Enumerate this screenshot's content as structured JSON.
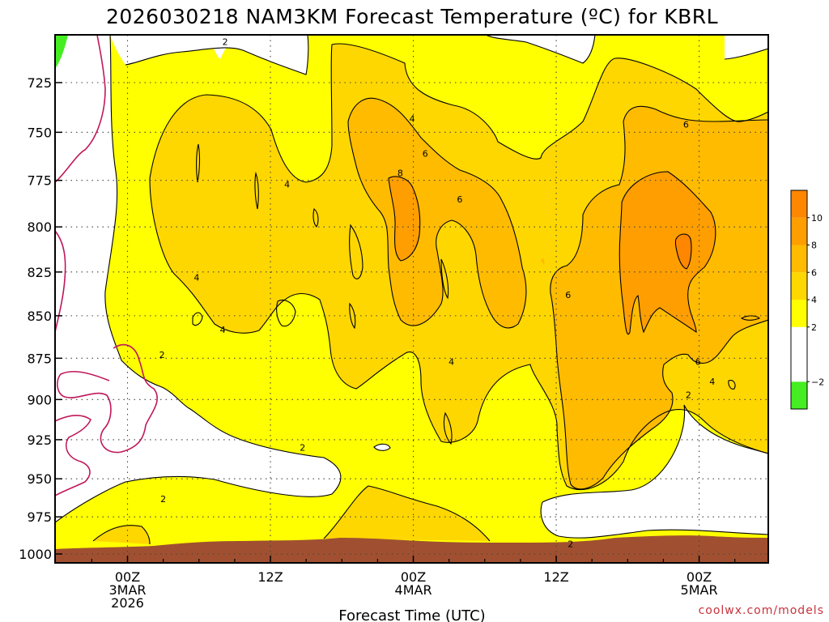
{
  "chart_data": {
    "type": "heatmap",
    "title": "2026030218 NAM3KM Forecast Temperature (ºC) for KBRL",
    "xlabel": "Forecast Time (UTC)",
    "ylabel": "",
    "y_scale": "log",
    "y_inverted": true,
    "y_ticks": [
      {
        "value": 725,
        "label": "725"
      },
      {
        "value": 750,
        "label": "750"
      },
      {
        "value": 775,
        "label": "775"
      },
      {
        "value": 800,
        "label": "800"
      },
      {
        "value": 825,
        "label": "825"
      },
      {
        "value": 850,
        "label": "850"
      },
      {
        "value": 875,
        "label": "875"
      },
      {
        "value": 900,
        "label": "900"
      },
      {
        "value": 925,
        "label": "925"
      },
      {
        "value": 950,
        "label": "950"
      },
      {
        "value": 975,
        "label": "975"
      },
      {
        "value": 1000,
        "label": "1000"
      }
    ],
    "x_ticks": [
      {
        "hour": 6,
        "lines": [
          "00Z",
          "3MAR",
          "2026"
        ]
      },
      {
        "hour": 18,
        "lines": [
          "12Z"
        ]
      },
      {
        "hour": 30,
        "lines": [
          "00Z",
          "4MAR"
        ]
      },
      {
        "hour": 42,
        "lines": [
          "12Z"
        ]
      },
      {
        "hour": 54,
        "lines": [
          "00Z",
          "5MAR"
        ]
      }
    ],
    "grid": true,
    "legend": {
      "placement": "right",
      "bins": [
        {
          "lo": -4,
          "hi": -2,
          "color": "#44ee22"
        },
        {
          "lo": -2,
          "hi": 2,
          "color": "#ffffff"
        },
        {
          "lo": 2,
          "hi": 4,
          "color": "#ffff00"
        },
        {
          "lo": 4,
          "hi": 6,
          "color": "#ffd700"
        },
        {
          "lo": 6,
          "hi": 8,
          "color": "#ffbb00"
        },
        {
          "lo": 8,
          "hi": 10,
          "color": "#ff9e00"
        },
        {
          "lo": 10,
          "hi": 12,
          "color": "#ff8600"
        }
      ],
      "labels": [
        {
          "value": 10,
          "text": "10"
        },
        {
          "value": 8,
          "text": "8"
        },
        {
          "value": 6,
          "text": "6"
        },
        {
          "value": 4,
          "text": "4"
        },
        {
          "value": 2,
          "text": "2"
        },
        {
          "value": -2,
          "text": "−2"
        }
      ]
    },
    "zero_isotherm_color": "#c0185a",
    "contour_labels": [
      {
        "hour": 14.2,
        "p": 705,
        "text": "2"
      },
      {
        "hour": 19.4,
        "p": 777,
        "text": "4"
      },
      {
        "hour": 11.8,
        "p": 828,
        "text": "4"
      },
      {
        "hour": 14.0,
        "p": 858,
        "text": "4"
      },
      {
        "hour": 8.9,
        "p": 873,
        "text": "2"
      },
      {
        "hour": 20.7,
        "p": 930,
        "text": "2"
      },
      {
        "hour": 9.0,
        "p": 963,
        "text": "2"
      },
      {
        "hour": 29.9,
        "p": 743,
        "text": "4"
      },
      {
        "hour": 31.0,
        "p": 761,
        "text": "6"
      },
      {
        "hour": 28.9,
        "p": 771,
        "text": "8"
      },
      {
        "hour": 33.9,
        "p": 785,
        "text": "6"
      },
      {
        "hour": 33.2,
        "p": 877,
        "text": "4"
      },
      {
        "hour": 43.0,
        "p": 838,
        "text": "6"
      },
      {
        "hour": 52.9,
        "p": 746,
        "text": "6"
      },
      {
        "hour": 53.9,
        "p": 877,
        "text": "6"
      },
      {
        "hour": 55.1,
        "p": 889,
        "text": "4"
      },
      {
        "hour": 53.1,
        "p": 897,
        "text": "2"
      },
      {
        "hour": 43.2,
        "p": 993,
        "text": "2"
      }
    ],
    "credit": "coolwx.com/models"
  }
}
